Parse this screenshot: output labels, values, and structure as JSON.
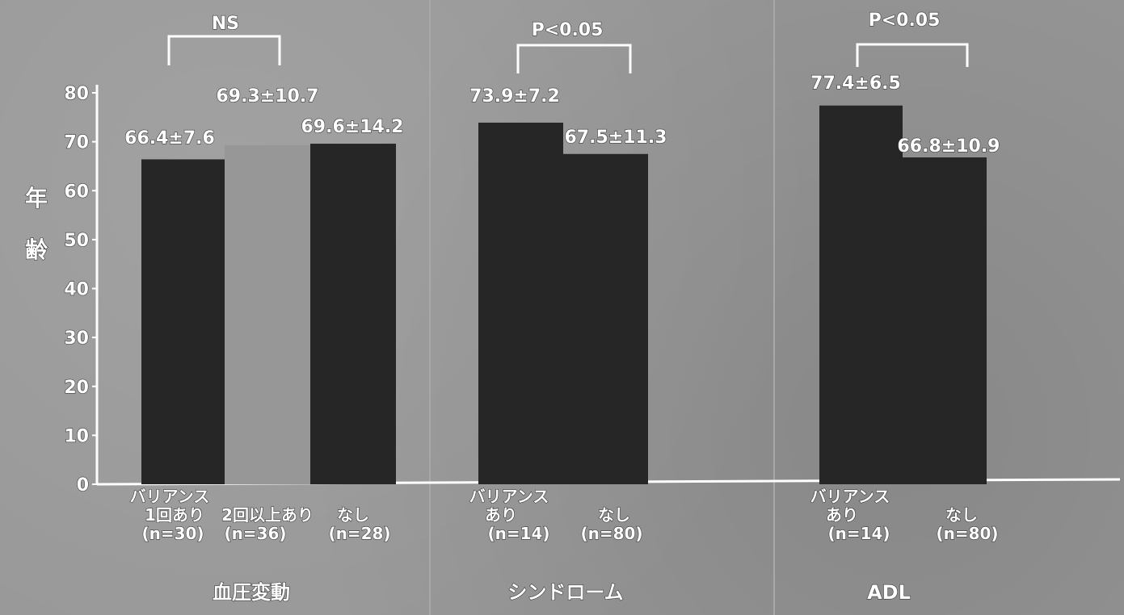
{
  "chart_data": {
    "type": "bar",
    "ylabel": "年齢",
    "ylim": [
      0,
      80
    ],
    "yticks": [
      0,
      10,
      20,
      30,
      40,
      50,
      60,
      70,
      80
    ],
    "groups": [
      {
        "name": "血圧変動",
        "significance": "NS",
        "bars": [
          {
            "category": [
              "バリアンス",
              "1回あり",
              "(n=30)"
            ],
            "value": 66.4,
            "label": "66.4±7.6",
            "color": "#262626"
          },
          {
            "category": [
              "2回以上あり",
              "(n=36)"
            ],
            "value": 69.3,
            "label": "69.3±10.7",
            "color": "#979797"
          },
          {
            "category": [
              "なし",
              "(n=28)"
            ],
            "value": 69.6,
            "label": "69.6±14.2",
            "color": "#262626"
          }
        ]
      },
      {
        "name": "シンドローム",
        "significance": "P<0.05",
        "bars": [
          {
            "category": [
              "バリアンス",
              "あり",
              "(n=14)"
            ],
            "value": 73.9,
            "label": "73.9±7.2",
            "color": "#262626"
          },
          {
            "category": [
              "なし",
              "(n=80)"
            ],
            "value": 67.5,
            "label": "67.5±11.3",
            "color": "#262626"
          }
        ]
      },
      {
        "name": "ADL",
        "significance": "P<0.05",
        "bars": [
          {
            "category": [
              "バリアンス",
              "あり",
              "(n=14)"
            ],
            "value": 77.4,
            "label": "77.4±6.5",
            "color": "#262626"
          },
          {
            "category": [
              "なし",
              "(n=80)"
            ],
            "value": 66.8,
            "label": "66.8±10.9",
            "color": "#262626"
          }
        ]
      }
    ]
  }
}
